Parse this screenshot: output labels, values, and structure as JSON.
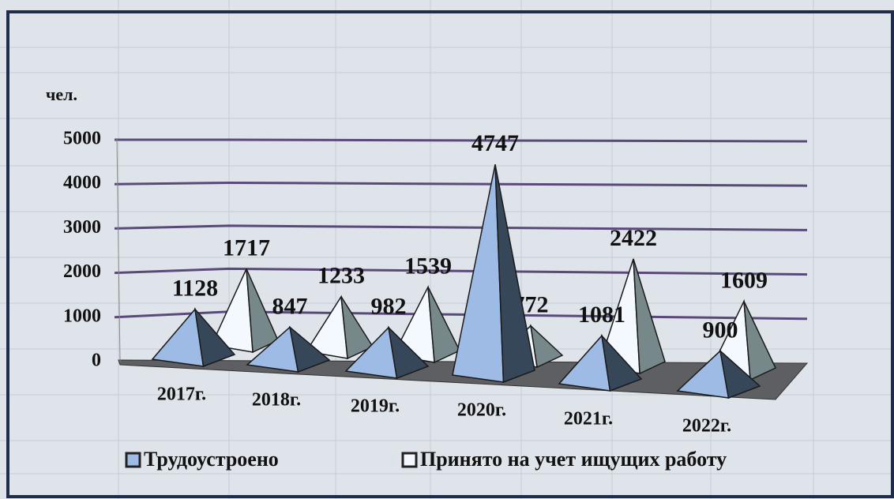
{
  "chart_data": {
    "type": "pyramid3d",
    "y_label": "чел.",
    "categories": [
      "2017г.",
      "2018г.",
      "2019г.",
      "2020г.",
      "2021г.",
      "2022г."
    ],
    "series": [
      {
        "name": "Трудоустроено",
        "color": "#9dbbe4",
        "values": [
          1128,
          847,
          982,
          4747,
          1081,
          900
        ]
      },
      {
        "name": "Принято на учет ищущих работу",
        "color": "#f4f9ff",
        "values": [
          1717,
          1233,
          1539,
          772,
          2422,
          1609
        ]
      }
    ],
    "ylim": [
      0,
      5000
    ],
    "yticks": [
      0,
      1000,
      2000,
      3000,
      4000,
      5000
    ],
    "grid": true,
    "legend": "bottom"
  }
}
